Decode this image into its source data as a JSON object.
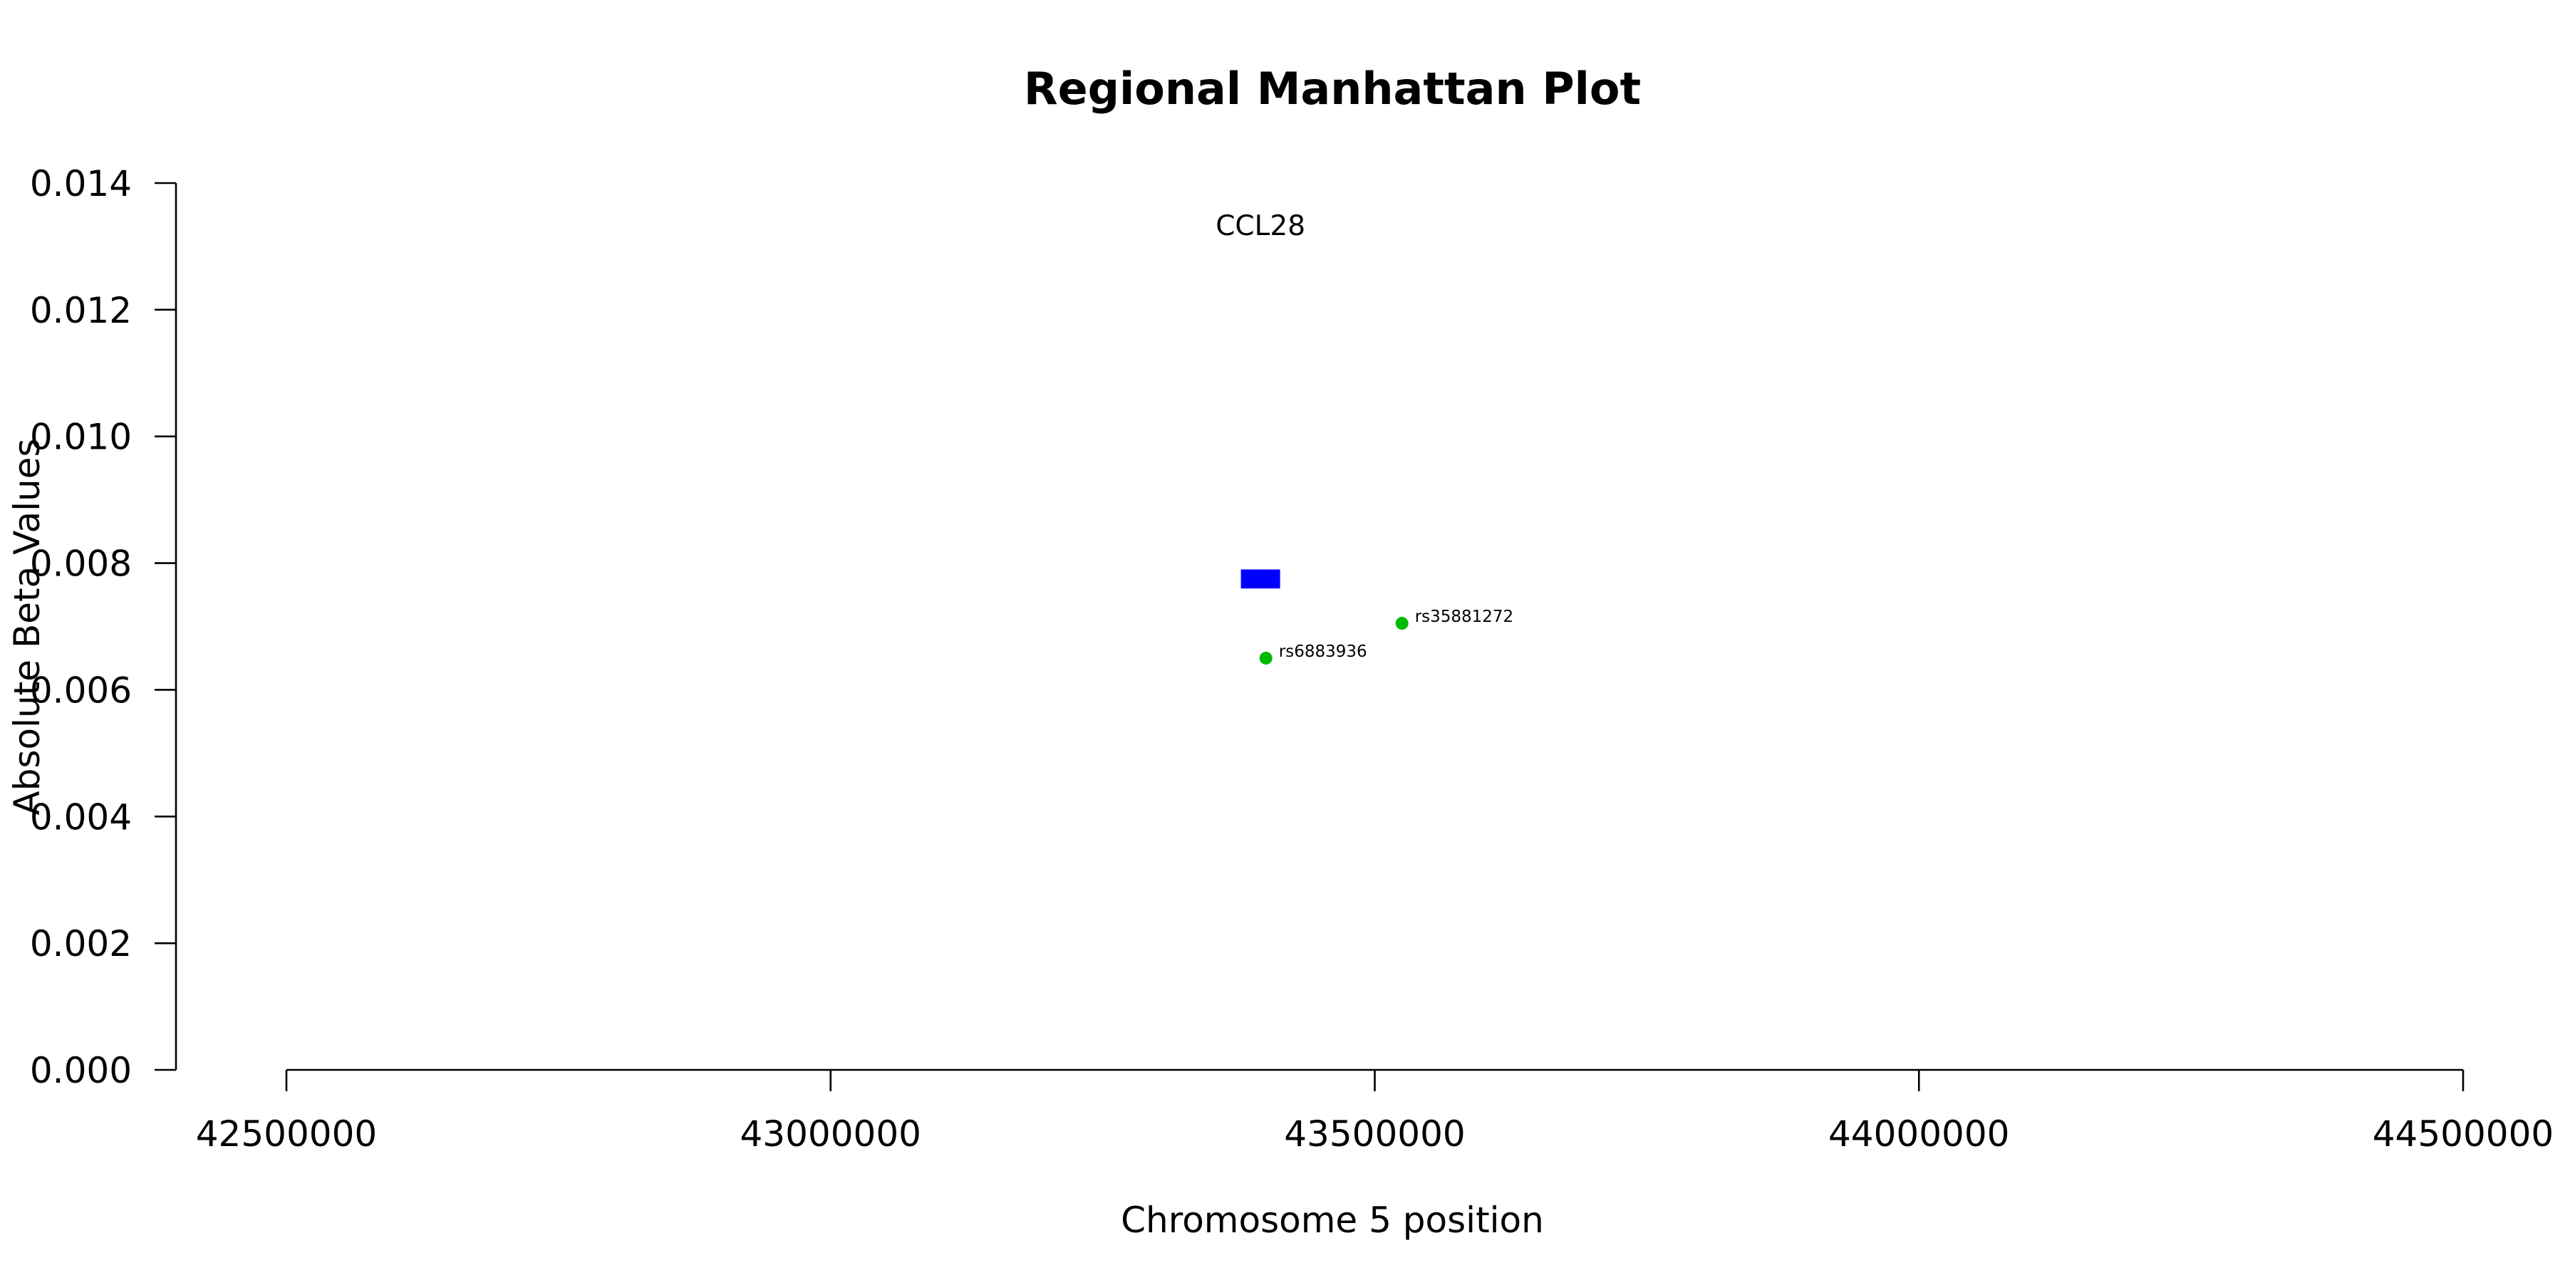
{
  "chart_data": {
    "type": "scatter",
    "title": "Regional Manhattan Plot",
    "xlabel": "Chromosome 5 position",
    "ylabel": "Absolute Beta Values",
    "xlim": [
      42500000,
      44500000
    ],
    "ylim": [
      0,
      0.014
    ],
    "x_ticks": [
      "42500000",
      "43000000",
      "43500000",
      "44000000",
      "44500000"
    ],
    "y_ticks": [
      "0.000",
      "0.002",
      "0.004",
      "0.006",
      "0.008",
      "0.010",
      "0.012",
      "0.014"
    ],
    "x_tick_values": [
      42500000,
      43000000,
      43500000,
      44000000,
      44500000
    ],
    "y_tick_values": [
      0,
      0.002,
      0.004,
      0.006,
      0.008,
      0.01,
      0.012,
      0.014
    ],
    "grid": false,
    "gene": {
      "name": "CCL28",
      "start": 43377000,
      "end": 43413000,
      "y_low": 0.0076,
      "y_high": 0.0079,
      "color": "#0000ff"
    },
    "series": [
      {
        "color": "#00bb00",
        "points": [
          {
            "label": "rs6883936",
            "x": 43400000,
            "y": 0.0065
          },
          {
            "label": "rs35881272",
            "x": 43525000,
            "y": 0.00705
          }
        ]
      }
    ]
  }
}
